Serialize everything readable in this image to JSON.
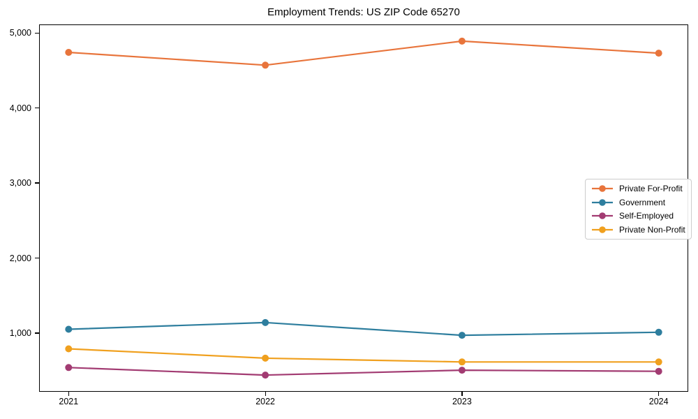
{
  "chart_data": {
    "type": "line",
    "title": "Employment Trends: US ZIP Code 65270",
    "xlabel": "",
    "ylabel": "",
    "categories": [
      2021,
      2022,
      2023,
      2024
    ],
    "x_tick_labels": [
      "2021",
      "2022",
      "2023",
      "2024"
    ],
    "y_ticks": [
      {
        "value": 1000,
        "label": "1,000"
      },
      {
        "value": 2000,
        "label": "2,000"
      },
      {
        "value": 3000,
        "label": "3,000"
      },
      {
        "value": 4000,
        "label": "4,000"
      },
      {
        "value": 5000,
        "label": "5,000"
      }
    ],
    "xlim": [
      2020.85,
      2024.15
    ],
    "ylim": [
      217.5,
      5112.5
    ],
    "grid": false,
    "legend_position": "center-right",
    "marker": "circle",
    "background_color": "#ffffff",
    "axis_color": "#000000",
    "legend_border_color": "#cccccc",
    "series": [
      {
        "name": "Private For-Profit",
        "color": "#E8743B",
        "values": [
          4740,
          4570,
          4890,
          4730
        ]
      },
      {
        "name": "Government",
        "color": "#2E7E9E",
        "values": [
          1050,
          1140,
          970,
          1010
        ]
      },
      {
        "name": "Self-Employed",
        "color": "#A23B72",
        "values": [
          540,
          440,
          505,
          490
        ]
      },
      {
        "name": "Private Non-Profit",
        "color": "#F0A01E",
        "values": [
          790,
          665,
          615,
          615
        ]
      }
    ]
  }
}
